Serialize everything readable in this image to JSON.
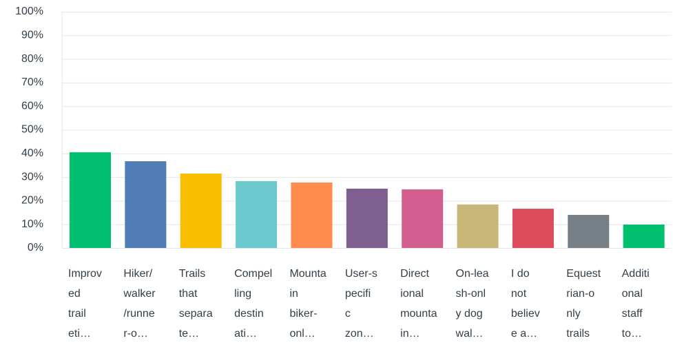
{
  "chart_data": {
    "type": "bar",
    "categories": [
      [
        "Improv",
        "ed",
        "trail",
        "eti…"
      ],
      [
        "Hiker/",
        "walker",
        "/runne",
        "r-o…"
      ],
      [
        "Trails",
        "that",
        "separa",
        "te…"
      ],
      [
        "Compel",
        "ling",
        "destin",
        "ati…"
      ],
      [
        "Mounta",
        "in",
        "biker-",
        "onl…"
      ],
      [
        "User-s",
        "pecifi",
        "c",
        "zon…"
      ],
      [
        "Direct",
        "ional",
        "mounta",
        "in…"
      ],
      [
        "On-lea",
        "sh-onl",
        "y dog",
        "wal…"
      ],
      [
        "I do",
        "not",
        "believ",
        "e a…"
      ],
      [
        "Equest",
        "rian-o",
        "nly",
        "trails"
      ],
      [
        "Additi",
        "onal",
        "staff",
        "to…"
      ]
    ],
    "values": [
      40.5,
      36.7,
      31.5,
      28.3,
      27.7,
      25.1,
      24.8,
      18.4,
      16.6,
      14.0,
      9.9
    ],
    "colors": [
      "#00bf6f",
      "#507cb6",
      "#f9be00",
      "#6bc8cd",
      "#ff8b4f",
      "#7f5f90",
      "#d25f90",
      "#c9b77a",
      "#dd4b5c",
      "#768086",
      "#00bf6f"
    ],
    "ylim": [
      0,
      100
    ],
    "yticks": [
      {
        "value": 0,
        "label": "0%"
      },
      {
        "value": 10,
        "label": "10%"
      },
      {
        "value": 20,
        "label": "20%"
      },
      {
        "value": 30,
        "label": "30%"
      },
      {
        "value": 40,
        "label": "40%"
      },
      {
        "value": 50,
        "label": "50%"
      },
      {
        "value": 60,
        "label": "60%"
      },
      {
        "value": 70,
        "label": "70%"
      },
      {
        "value": 80,
        "label": "80%"
      },
      {
        "value": 90,
        "label": "90%"
      },
      {
        "value": 100,
        "label": "100%"
      }
    ],
    "grid": true
  }
}
